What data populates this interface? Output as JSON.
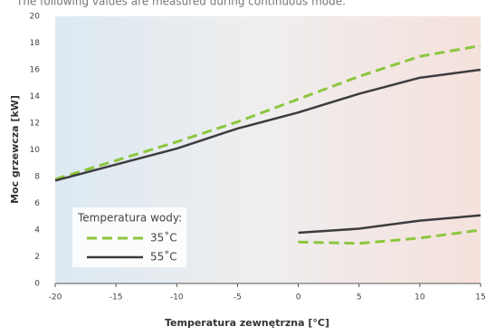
{
  "chart_data": {
    "type": "line",
    "subtitle": "The following values are measured during continuous mode.",
    "x_label": "Temperatura zewnętrzna [°C]",
    "y_label": "Moc grzewcza [kW]",
    "legend_title": "Temperatura wody:",
    "x": [
      -20,
      -15,
      -10,
      -5,
      0,
      5,
      10,
      15,
      null,
      0,
      5,
      10,
      15
    ],
    "series": [
      {
        "name": "35˚C",
        "color": "#8cc63e",
        "dashed": true,
        "values": [
          7.8,
          9.2,
          10.6,
          12.1,
          13.8,
          15.5,
          17.0,
          17.8,
          null,
          3.1,
          3.0,
          3.4,
          4.0
        ]
      },
      {
        "name": "55˚C",
        "color": "#3c3c3e",
        "dashed": false,
        "values": [
          7.7,
          8.9,
          10.1,
          11.6,
          12.8,
          14.2,
          15.4,
          16.0,
          null,
          3.8,
          4.1,
          4.7,
          5.1
        ]
      }
    ],
    "xlim": [
      -20,
      15
    ],
    "xticks": [
      -20,
      -15,
      -10,
      -5,
      0,
      5,
      10,
      15
    ],
    "ylim": [
      0,
      20
    ],
    "yticks": [
      0,
      2,
      4,
      6,
      8,
      10,
      12,
      14,
      16,
      18,
      20
    ],
    "grid": false
  }
}
